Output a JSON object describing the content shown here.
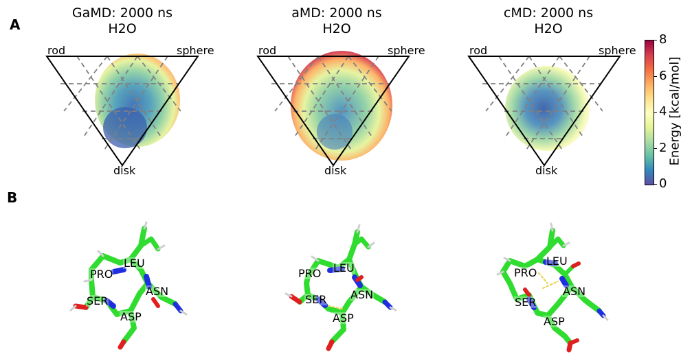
{
  "panel_a": {
    "letter": "A",
    "plots": [
      {
        "title_line1": "GaMD: 2000 ns",
        "title_line2": "H2O",
        "vertex_rod": "rod",
        "vertex_sphere": "sphere",
        "vertex_disk": "disk"
      },
      {
        "title_line1": "aMD: 2000 ns",
        "title_line2": "H2O",
        "vertex_rod": "rod",
        "vertex_sphere": "sphere",
        "vertex_disk": "disk"
      },
      {
        "title_line1": "cMD: 2000 ns",
        "title_line2": "H2O",
        "vertex_rod": "rod",
        "vertex_sphere": "sphere",
        "vertex_disk": "disk"
      }
    ],
    "colorbar": {
      "label": "Energy [kcal/mol]",
      "ticks": [
        "0",
        "2",
        "4",
        "6",
        "8"
      ],
      "range": [
        0,
        8
      ],
      "colormap": "Spectral_r"
    }
  },
  "panel_b": {
    "letter": "B",
    "structures": [
      {
        "residues": [
          "LEU",
          "PRO",
          "ASN",
          "SER",
          "ASP"
        ]
      },
      {
        "residues": [
          "LEU",
          "PRO",
          "ASN",
          "SER",
          "ASP"
        ]
      },
      {
        "residues": [
          "LEU",
          "PRO",
          "ASN",
          "SER",
          "ASP"
        ]
      }
    ]
  },
  "colors": {
    "carbon": "#2fdc2f",
    "nitrogen": "#1f2fe0",
    "oxygen": "#e02020",
    "hydrogen": "#e8e8e8",
    "hbond": "#e6d34a",
    "grid": "#808080"
  }
}
